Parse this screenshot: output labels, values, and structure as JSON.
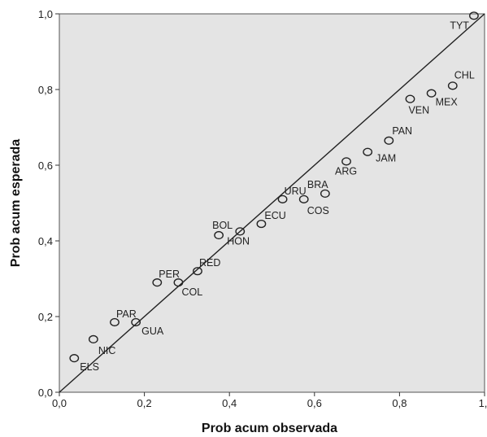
{
  "chart_data": {
    "type": "scatter",
    "title": "",
    "xlabel": "Prob acum observada",
    "ylabel": "Prob acum esperada",
    "xlim": [
      0,
      1
    ],
    "ylim": [
      0,
      1
    ],
    "x_tick_labels": [
      "0,0",
      "0,2",
      "0,4",
      "0,6",
      "0,8",
      "1,"
    ],
    "y_tick_labels": [
      "0,0",
      "0,2",
      "0,4",
      "0,6",
      "0,8",
      "1,0"
    ],
    "grid": false,
    "legend": "none",
    "reference_line": {
      "from": [
        0,
        0
      ],
      "to": [
        1,
        1
      ]
    },
    "colors": {
      "plot_background": "#e4e4e4",
      "points": "#222222",
      "line": "#222222"
    },
    "points": [
      {
        "label": "ELS",
        "x": 0.035,
        "y": 0.09
      },
      {
        "label": "NIC",
        "x": 0.08,
        "y": 0.14
      },
      {
        "label": "PAR",
        "x": 0.13,
        "y": 0.185
      },
      {
        "label": "GUA",
        "x": 0.18,
        "y": 0.185
      },
      {
        "label": "PER",
        "x": 0.23,
        "y": 0.29
      },
      {
        "label": "COL",
        "x": 0.28,
        "y": 0.29
      },
      {
        "label": "RED",
        "x": 0.325,
        "y": 0.32
      },
      {
        "label": "BOL",
        "x": 0.375,
        "y": 0.415
      },
      {
        "label": "HON",
        "x": 0.425,
        "y": 0.425
      },
      {
        "label": "ECU",
        "x": 0.475,
        "y": 0.445
      },
      {
        "label": "URU",
        "x": 0.525,
        "y": 0.51
      },
      {
        "label": "COS",
        "x": 0.575,
        "y": 0.51
      },
      {
        "label": "BRA",
        "x": 0.625,
        "y": 0.525
      },
      {
        "label": "ARG",
        "x": 0.675,
        "y": 0.61
      },
      {
        "label": "JAM",
        "x": 0.725,
        "y": 0.635
      },
      {
        "label": "PAN",
        "x": 0.775,
        "y": 0.665
      },
      {
        "label": "VEN",
        "x": 0.825,
        "y": 0.775
      },
      {
        "label": "MEX",
        "x": 0.875,
        "y": 0.79
      },
      {
        "label": "CHL",
        "x": 0.925,
        "y": 0.81
      },
      {
        "label": "TYT",
        "x": 0.975,
        "y": 0.995
      }
    ]
  }
}
